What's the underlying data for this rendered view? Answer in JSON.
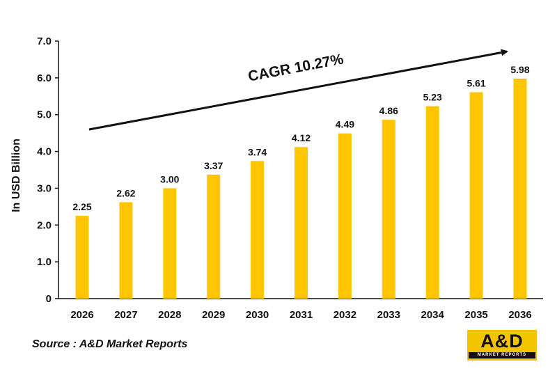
{
  "chart_data": {
    "type": "bar",
    "categories": [
      "2026",
      "2027",
      "2028",
      "2029",
      "2030",
      "2031",
      "2032",
      "2033",
      "2034",
      "2035",
      "2036"
    ],
    "values": [
      2.25,
      2.62,
      3.0,
      3.37,
      3.74,
      4.12,
      4.49,
      4.86,
      5.23,
      5.61,
      5.98
    ],
    "value_labels": [
      "2.25",
      "2.62",
      "3.00",
      "3.37",
      "3.74",
      "4.12",
      "4.49",
      "4.86",
      "5.23",
      "5.61",
      "5.98"
    ],
    "title": "",
    "xlabel": "",
    "ylabel": "In USD Billion",
    "ylim": [
      0,
      7
    ],
    "yticks": [
      0,
      1,
      2,
      3,
      4,
      5,
      6,
      7
    ],
    "ytick_labels": [
      "0",
      "1.0",
      "2.0",
      "3.0",
      "4.0",
      "5.0",
      "6.0",
      "7.0"
    ],
    "grid": false,
    "legend": "none",
    "bar_color": "#ffc600",
    "annotation": "CAGR 10.27%"
  },
  "source": "Source : A&D Market Reports",
  "logo": {
    "main": "A&D",
    "sub": "MARKET REPORTS",
    "color": "#f5c400"
  }
}
